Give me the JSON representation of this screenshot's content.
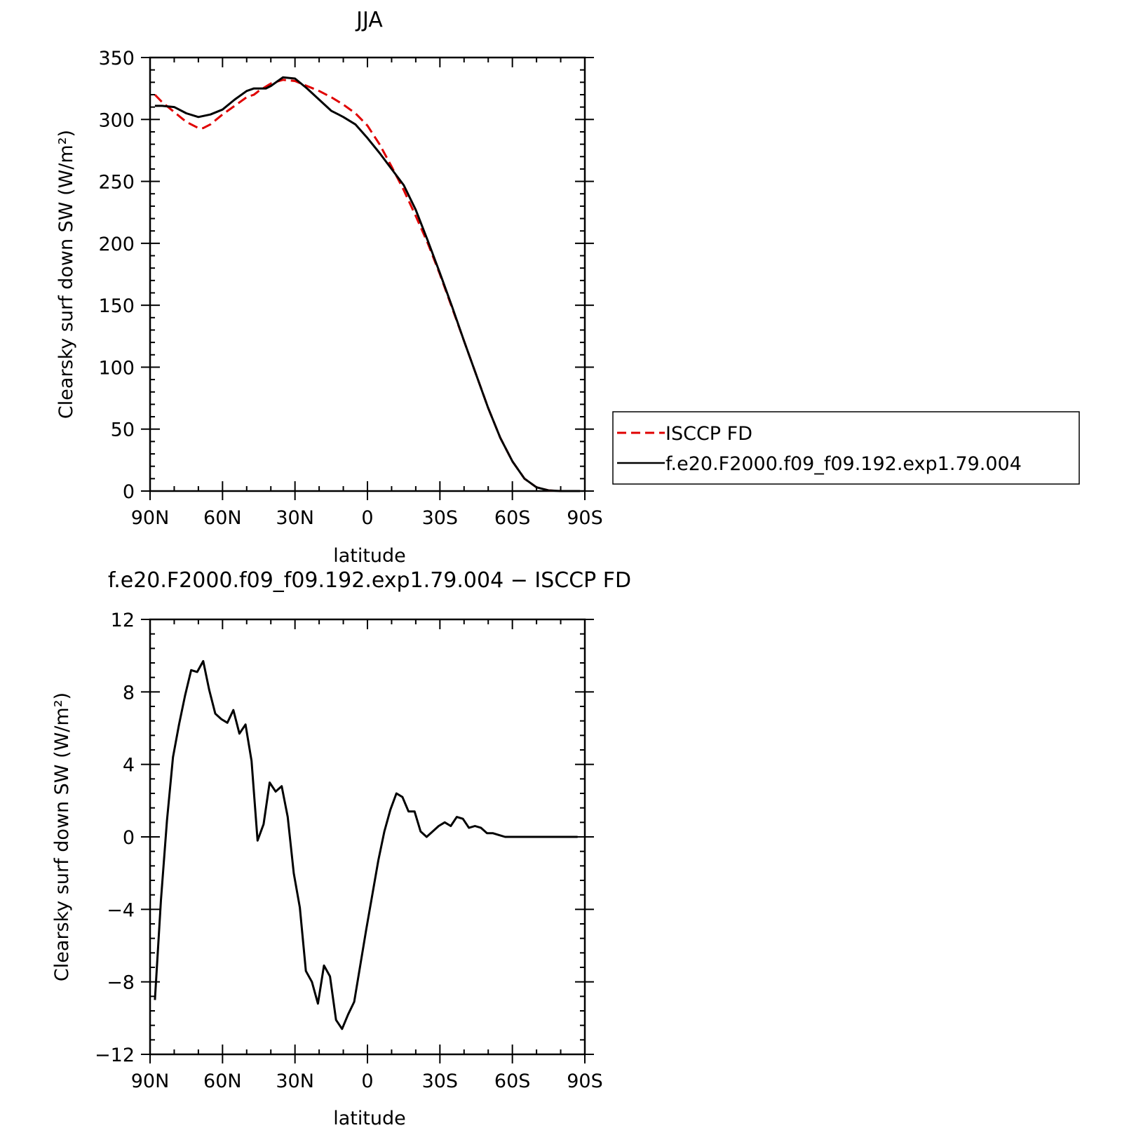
{
  "chart_data": [
    {
      "type": "line",
      "title": "JJA",
      "xlabel": "latitude",
      "ylabel": "Clearsky surf down SW (W/m²)",
      "xlim": [
        90,
        -90
      ],
      "ylim": [
        0,
        350
      ],
      "x_ticks": [
        {
          "value": 90,
          "label": "90N"
        },
        {
          "value": 60,
          "label": "60N"
        },
        {
          "value": 30,
          "label": "30N"
        },
        {
          "value": 0,
          "label": "0"
        },
        {
          "value": -30,
          "label": "30S"
        },
        {
          "value": -60,
          "label": "60S"
        },
        {
          "value": -90,
          "label": "90S"
        }
      ],
      "y_ticks": [
        "0",
        "50",
        "100",
        "150",
        "200",
        "250",
        "300",
        "350"
      ],
      "legend": {
        "placement": "right",
        "entries": [
          "ISCCP FD",
          "f.e20.F2000.f09_f09.192.exp1.79.004"
        ]
      },
      "series": [
        {
          "name": "ISCCP FD",
          "color": "#e00000",
          "dash": "dashed",
          "points": [
            [
              88,
              320
            ],
            [
              85,
              314
            ],
            [
              80,
              306
            ],
            [
              75,
              298
            ],
            [
              70,
              293
            ],
            [
              68,
              293
            ],
            [
              65,
              296
            ],
            [
              60,
              304
            ],
            [
              55,
              311
            ],
            [
              50,
              318
            ],
            [
              47,
              320
            ],
            [
              45,
              323
            ],
            [
              40,
              329
            ],
            [
              35,
              332
            ],
            [
              30,
              331
            ],
            [
              25,
              327
            ],
            [
              20,
              323
            ],
            [
              15,
              318
            ],
            [
              10,
              312
            ],
            [
              5,
              305
            ],
            [
              0,
              295
            ],
            [
              -5,
              280
            ],
            [
              -10,
              262
            ],
            [
              -15,
              243
            ],
            [
              -20,
              222
            ],
            [
              -25,
              200
            ],
            [
              -30,
              175
            ],
            [
              -35,
              148
            ],
            [
              -40,
              121
            ],
            [
              -45,
              94
            ],
            [
              -50,
              67
            ],
            [
              -55,
              43
            ],
            [
              -60,
              24
            ],
            [
              -65,
              10
            ],
            [
              -70,
              3
            ],
            [
              -75,
              0.5
            ],
            [
              -80,
              0
            ],
            [
              -88,
              0
            ]
          ]
        },
        {
          "name": "f.e20.F2000.f09_f09.192.exp1.79.004",
          "color": "#000000",
          "dash": "solid",
          "points": [
            [
              88,
              311
            ],
            [
              85,
              311
            ],
            [
              80,
              310
            ],
            [
              75,
              305
            ],
            [
              70,
              302
            ],
            [
              65,
              304
            ],
            [
              60,
              308
            ],
            [
              55,
              316
            ],
            [
              50,
              323
            ],
            [
              47,
              325
            ],
            [
              45,
              325
            ],
            [
              42,
              325
            ],
            [
              40,
              327
            ],
            [
              35,
              334
            ],
            [
              30,
              333
            ],
            [
              25,
              325
            ],
            [
              20,
              316
            ],
            [
              15,
              307
            ],
            [
              12,
              304
            ],
            [
              10,
              302
            ],
            [
              5,
              296
            ],
            [
              0,
              285
            ],
            [
              -5,
              273
            ],
            [
              -10,
              260
            ],
            [
              -15,
              247
            ],
            [
              -20,
              227
            ],
            [
              -25,
              202
            ],
            [
              -30,
              176
            ],
            [
              -35,
              149
            ],
            [
              -40,
              121
            ],
            [
              -45,
              94
            ],
            [
              -50,
              67
            ],
            [
              -55,
              43
            ],
            [
              -60,
              24
            ],
            [
              -65,
              10
            ],
            [
              -70,
              3
            ],
            [
              -75,
              0.5
            ],
            [
              -80,
              0
            ],
            [
              -88,
              0
            ]
          ]
        }
      ]
    },
    {
      "type": "line",
      "title": "f.e20.F2000.f09_f09.192.exp1.79.004 − ISCCP FD",
      "xlabel": "latitude",
      "ylabel": "Clearsky surf down SW (W/m²)",
      "xlim": [
        90,
        -90
      ],
      "ylim": [
        -12,
        12
      ],
      "x_ticks": [
        {
          "value": 90,
          "label": "90N"
        },
        {
          "value": 60,
          "label": "60N"
        },
        {
          "value": 30,
          "label": "30N"
        },
        {
          "value": 0,
          "label": "0"
        },
        {
          "value": -30,
          "label": "30S"
        },
        {
          "value": -60,
          "label": "60S"
        },
        {
          "value": -90,
          "label": "90S"
        }
      ],
      "y_ticks": [
        "−12",
        "−8",
        "−4",
        "0",
        "4",
        "8",
        "12"
      ],
      "series": [
        {
          "color": "#000000",
          "dash": "solid",
          "points": [
            [
              88,
              -9
            ],
            [
              85.5,
              -3.5
            ],
            [
              83,
              0.9
            ],
            [
              80.5,
              4.4
            ],
            [
              78,
              6.2
            ],
            [
              75.5,
              7.8
            ],
            [
              73,
              9.2
            ],
            [
              70.5,
              9.1
            ],
            [
              68,
              9.7
            ],
            [
              65.5,
              8.1
            ],
            [
              63,
              6.8
            ],
            [
              60.5,
              6.5
            ],
            [
              58,
              6.3
            ],
            [
              55.5,
              7.0
            ],
            [
              53,
              5.7
            ],
            [
              50.5,
              6.2
            ],
            [
              48,
              4.2
            ],
            [
              45.5,
              -0.2
            ],
            [
              43,
              0.7
            ],
            [
              40.5,
              3.0
            ],
            [
              38,
              2.5
            ],
            [
              35.5,
              2.8
            ],
            [
              33,
              1.1
            ],
            [
              30.5,
              -2.0
            ],
            [
              28,
              -3.9
            ],
            [
              25.5,
              -7.4
            ],
            [
              23,
              -8.0
            ],
            [
              20.5,
              -9.2
            ],
            [
              18,
              -7.1
            ],
            [
              15.5,
              -7.7
            ],
            [
              13,
              -10.1
            ],
            [
              10.5,
              -10.6
            ],
            [
              8,
              -9.8
            ],
            [
              5.5,
              -9.1
            ],
            [
              3,
              -7.1
            ],
            [
              0.5,
              -5.1
            ],
            [
              -2,
              -3.2
            ],
            [
              -4.5,
              -1.3
            ],
            [
              -7,
              0.3
            ],
            [
              -9.5,
              1.5
            ],
            [
              -12,
              2.4
            ],
            [
              -14.5,
              2.2
            ],
            [
              -17,
              1.4
            ],
            [
              -19.5,
              1.4
            ],
            [
              -22,
              0.3
            ],
            [
              -24.5,
              0.0
            ],
            [
              -27,
              0.3
            ],
            [
              -29.5,
              0.6
            ],
            [
              -32,
              0.8
            ],
            [
              -34.5,
              0.6
            ],
            [
              -37,
              1.1
            ],
            [
              -39.5,
              1.0
            ],
            [
              -42,
              0.5
            ],
            [
              -44.5,
              0.6
            ],
            [
              -47,
              0.5
            ],
            [
              -49.5,
              0.2
            ],
            [
              -52,
              0.2
            ],
            [
              -54.5,
              0.1
            ],
            [
              -57,
              0.0
            ],
            [
              -59.5,
              0.0
            ],
            [
              -62,
              0.0
            ],
            [
              -64.5,
              0.0
            ],
            [
              -67,
              0.0
            ],
            [
              -69.5,
              0.0
            ],
            [
              -72,
              0.0
            ],
            [
              -74.5,
              0.0
            ],
            [
              -77,
              0.0
            ],
            [
              -79.5,
              0.0
            ],
            [
              -82,
              0.0
            ],
            [
              -84.5,
              0.0
            ],
            [
              -87,
              0.0
            ]
          ]
        }
      ]
    }
  ]
}
